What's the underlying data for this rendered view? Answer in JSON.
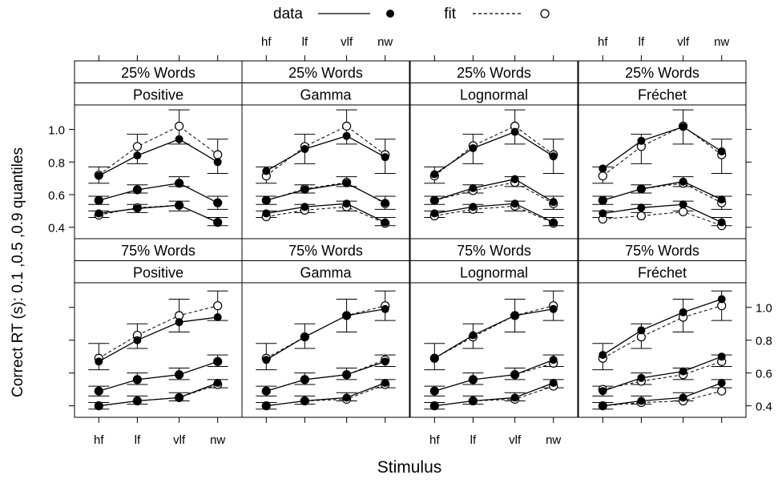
{
  "legend": {
    "data_label": "data",
    "fit_label": "fit",
    "placement": "top"
  },
  "axis": {
    "xlabel": "Stimulus",
    "ylabel": "Correct RT (s): 0.1 ,0.5 ,0.9 quantiles",
    "ylim": [
      0.33,
      1.15
    ],
    "yticks": [
      0.4,
      0.6,
      0.8,
      1.0
    ],
    "ytick_labels": [
      "0.4",
      "0.6",
      "0.8",
      "1.0"
    ],
    "top_ticks_on_right_axis": false
  },
  "chart_data": {
    "type": "line",
    "categories": [
      "hf",
      "lf",
      "vlf",
      "nw"
    ],
    "quantiles": [
      "0.1",
      "0.5",
      "0.9"
    ],
    "layout_note_rows": [
      "25% Words",
      "75% Words"
    ],
    "panels": [
      {
        "strip_top": "25% Words",
        "strip_bottom": "Positive",
        "data": [
          [
            0.485,
            0.515,
            0.535,
            0.43
          ],
          [
            0.565,
            0.63,
            0.67,
            0.55
          ],
          [
            0.715,
            0.84,
            0.94,
            0.8
          ]
        ],
        "fit": [
          [
            0.475,
            0.52,
            0.535,
            0.43
          ],
          [
            0.565,
            0.63,
            0.67,
            0.55
          ],
          [
            0.72,
            0.895,
            1.02,
            0.845
          ]
        ],
        "ci": [
          [
            0.46,
            0.5
          ],
          [
            0.49,
            0.54
          ],
          [
            0.5,
            0.56
          ],
          [
            0.41,
            0.46
          ],
          [
            0.54,
            0.59
          ],
          [
            0.61,
            0.66
          ],
          [
            0.65,
            0.71
          ],
          [
            0.51,
            0.59
          ],
          [
            0.67,
            0.77
          ],
          [
            0.79,
            0.97
          ],
          [
            0.91,
            1.12
          ],
          [
            0.73,
            0.94
          ]
        ]
      },
      {
        "strip_top": "25% Words",
        "strip_bottom": "Gamma",
        "data": [
          [
            0.485,
            0.525,
            0.545,
            0.43
          ],
          [
            0.565,
            0.63,
            0.67,
            0.55
          ],
          [
            0.745,
            0.88,
            0.96,
            0.83
          ]
        ],
        "fit": [
          [
            0.465,
            0.505,
            0.525,
            0.425
          ],
          [
            0.565,
            0.635,
            0.675,
            0.545
          ],
          [
            0.715,
            0.895,
            1.02,
            0.845
          ]
        ],
        "ci": [
          [
            0.46,
            0.5
          ],
          [
            0.49,
            0.54
          ],
          [
            0.5,
            0.56
          ],
          [
            0.41,
            0.46
          ],
          [
            0.54,
            0.59
          ],
          [
            0.61,
            0.66
          ],
          [
            0.65,
            0.71
          ],
          [
            0.51,
            0.59
          ],
          [
            0.67,
            0.77
          ],
          [
            0.79,
            0.97
          ],
          [
            0.91,
            1.12
          ],
          [
            0.73,
            0.94
          ]
        ]
      },
      {
        "strip_top": "25% Words",
        "strip_bottom": "Lognormal",
        "data": [
          [
            0.485,
            0.525,
            0.545,
            0.43
          ],
          [
            0.565,
            0.64,
            0.695,
            0.555
          ],
          [
            0.725,
            0.885,
            0.985,
            0.835
          ]
        ],
        "fit": [
          [
            0.47,
            0.51,
            0.53,
            0.425
          ],
          [
            0.565,
            0.625,
            0.675,
            0.545
          ],
          [
            0.715,
            0.9,
            1.02,
            0.845
          ]
        ],
        "ci": [
          [
            0.46,
            0.5
          ],
          [
            0.49,
            0.54
          ],
          [
            0.5,
            0.56
          ],
          [
            0.41,
            0.46
          ],
          [
            0.54,
            0.59
          ],
          [
            0.61,
            0.66
          ],
          [
            0.65,
            0.71
          ],
          [
            0.51,
            0.59
          ],
          [
            0.67,
            0.77
          ],
          [
            0.79,
            0.97
          ],
          [
            0.91,
            1.12
          ],
          [
            0.73,
            0.94
          ]
        ]
      },
      {
        "strip_top": "25% Words",
        "strip_bottom": "Fréchet",
        "data": [
          [
            0.485,
            0.52,
            0.54,
            0.43
          ],
          [
            0.565,
            0.635,
            0.68,
            0.57
          ],
          [
            0.76,
            0.93,
            1.015,
            0.865
          ]
        ],
        "fit": [
          [
            0.45,
            0.47,
            0.495,
            0.41
          ],
          [
            0.565,
            0.635,
            0.67,
            0.55
          ],
          [
            0.715,
            0.895,
            1.02,
            0.845
          ]
        ],
        "ci": [
          [
            0.46,
            0.5
          ],
          [
            0.49,
            0.54
          ],
          [
            0.5,
            0.56
          ],
          [
            0.41,
            0.46
          ],
          [
            0.54,
            0.59
          ],
          [
            0.61,
            0.66
          ],
          [
            0.65,
            0.71
          ],
          [
            0.51,
            0.59
          ],
          [
            0.67,
            0.77
          ],
          [
            0.79,
            0.97
          ],
          [
            0.91,
            1.12
          ],
          [
            0.73,
            0.94
          ]
        ]
      },
      {
        "strip_top": "75% Words",
        "strip_bottom": "Positive",
        "data": [
          [
            0.4,
            0.43,
            0.45,
            0.54
          ],
          [
            0.49,
            0.56,
            0.59,
            0.67
          ],
          [
            0.67,
            0.8,
            0.91,
            0.94
          ]
        ],
        "fit": [
          [
            0.4,
            0.43,
            0.45,
            0.53
          ],
          [
            0.49,
            0.56,
            0.59,
            0.67
          ],
          [
            0.69,
            0.83,
            0.95,
            1.01
          ]
        ],
        "ci": [
          [
            0.38,
            0.42
          ],
          [
            0.41,
            0.46
          ],
          [
            0.43,
            0.48
          ],
          [
            0.51,
            0.56
          ],
          [
            0.46,
            0.52
          ],
          [
            0.53,
            0.6
          ],
          [
            0.56,
            0.63
          ],
          [
            0.64,
            0.71
          ],
          [
            0.62,
            0.78
          ],
          [
            0.75,
            0.9
          ],
          [
            0.85,
            1.05
          ],
          [
            0.92,
            1.1
          ]
        ]
      },
      {
        "strip_top": "75% Words",
        "strip_bottom": "Gamma",
        "data": [
          [
            0.4,
            0.43,
            0.45,
            0.54
          ],
          [
            0.49,
            0.56,
            0.59,
            0.67
          ],
          [
            0.68,
            0.82,
            0.95,
            0.99
          ]
        ],
        "fit": [
          [
            0.4,
            0.43,
            0.44,
            0.53
          ],
          [
            0.49,
            0.56,
            0.59,
            0.68
          ],
          [
            0.69,
            0.82,
            0.95,
            1.01
          ]
        ],
        "ci": [
          [
            0.38,
            0.42
          ],
          [
            0.41,
            0.46
          ],
          [
            0.43,
            0.48
          ],
          [
            0.51,
            0.56
          ],
          [
            0.46,
            0.52
          ],
          [
            0.53,
            0.6
          ],
          [
            0.56,
            0.63
          ],
          [
            0.64,
            0.71
          ],
          [
            0.62,
            0.78
          ],
          [
            0.75,
            0.9
          ],
          [
            0.85,
            1.05
          ],
          [
            0.92,
            1.1
          ]
        ]
      },
      {
        "strip_top": "75% Words",
        "strip_bottom": "Lognormal",
        "data": [
          [
            0.4,
            0.43,
            0.45,
            0.54
          ],
          [
            0.49,
            0.56,
            0.59,
            0.68
          ],
          [
            0.69,
            0.83,
            0.95,
            0.99
          ]
        ],
        "fit": [
          [
            0.4,
            0.43,
            0.44,
            0.52
          ],
          [
            0.49,
            0.56,
            0.59,
            0.66
          ],
          [
            0.69,
            0.82,
            0.95,
            1.01
          ]
        ],
        "ci": [
          [
            0.38,
            0.42
          ],
          [
            0.41,
            0.46
          ],
          [
            0.43,
            0.48
          ],
          [
            0.51,
            0.56
          ],
          [
            0.46,
            0.52
          ],
          [
            0.53,
            0.6
          ],
          [
            0.56,
            0.63
          ],
          [
            0.64,
            0.71
          ],
          [
            0.62,
            0.78
          ],
          [
            0.75,
            0.9
          ],
          [
            0.85,
            1.05
          ],
          [
            0.92,
            1.1
          ]
        ]
      },
      {
        "strip_top": "75% Words",
        "strip_bottom": "Fréchet",
        "data": [
          [
            0.4,
            0.43,
            0.45,
            0.54
          ],
          [
            0.49,
            0.57,
            0.61,
            0.7
          ],
          [
            0.71,
            0.86,
            0.97,
            1.05
          ]
        ],
        "fit": [
          [
            0.4,
            0.42,
            0.43,
            0.49
          ],
          [
            0.5,
            0.55,
            0.59,
            0.67
          ],
          [
            0.69,
            0.82,
            0.94,
            1.01
          ]
        ],
        "ci": [
          [
            0.38,
            0.42
          ],
          [
            0.41,
            0.46
          ],
          [
            0.43,
            0.48
          ],
          [
            0.51,
            0.56
          ],
          [
            0.46,
            0.52
          ],
          [
            0.53,
            0.6
          ],
          [
            0.56,
            0.63
          ],
          [
            0.64,
            0.71
          ],
          [
            0.62,
            0.78
          ],
          [
            0.75,
            0.9
          ],
          [
            0.85,
            1.05
          ],
          [
            0.92,
            1.1
          ]
        ]
      }
    ]
  }
}
